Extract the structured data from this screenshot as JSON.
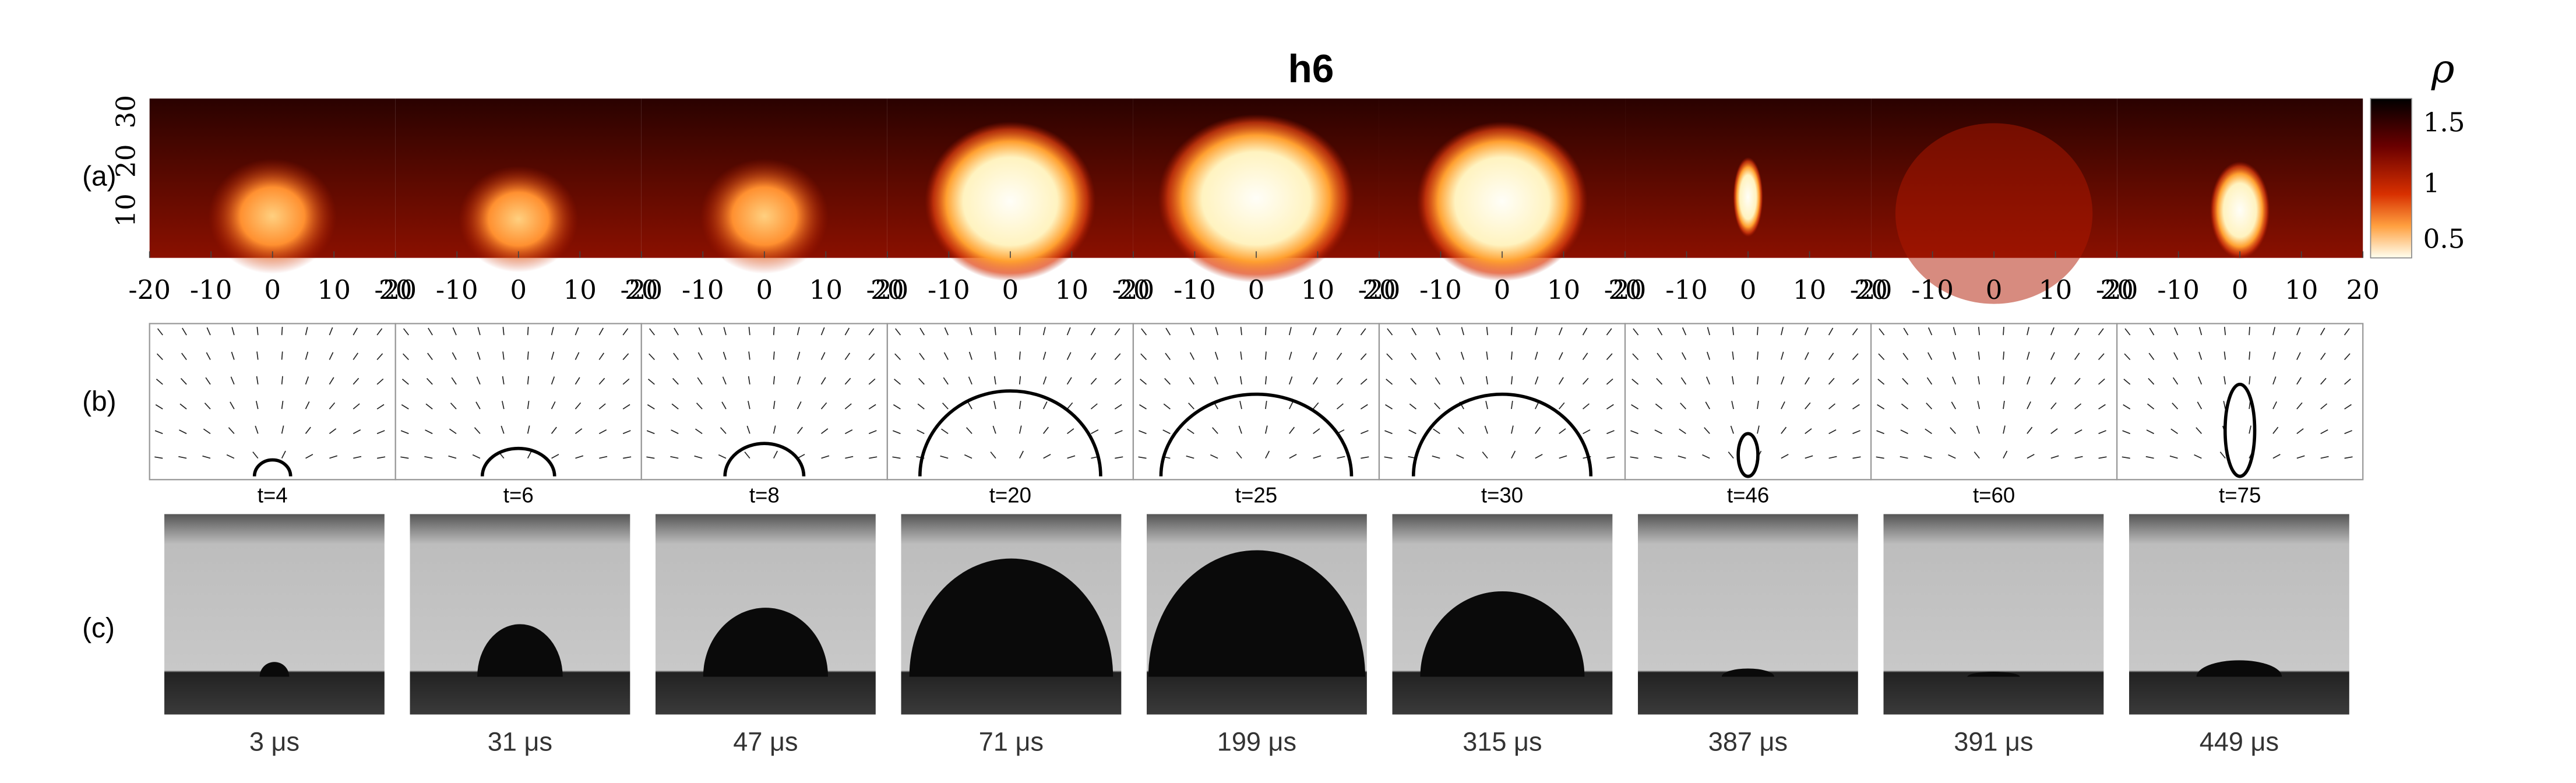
{
  "title": "h6",
  "row_labels": [
    "(a)",
    "(b)",
    "(c)"
  ],
  "colorbar": {
    "label": "ρ",
    "ticks": [
      "1.5",
      "1",
      "0.5"
    ]
  },
  "y_ticks": [
    "10",
    "20",
    "30"
  ],
  "x_ticks": [
    "-20",
    "-10",
    "0",
    "10",
    "20"
  ],
  "simulation_times": [
    "t=4",
    "t=6",
    "t=8",
    "t=20",
    "t=25",
    "t=30",
    "t=46",
    "t=60",
    "t=75"
  ],
  "experiment_times": [
    "3 μs",
    "31 μs",
    "47 μs",
    "71 μs",
    "199 μs",
    "315 μs",
    "387 μs",
    "391 μs",
    "449 μs"
  ]
}
